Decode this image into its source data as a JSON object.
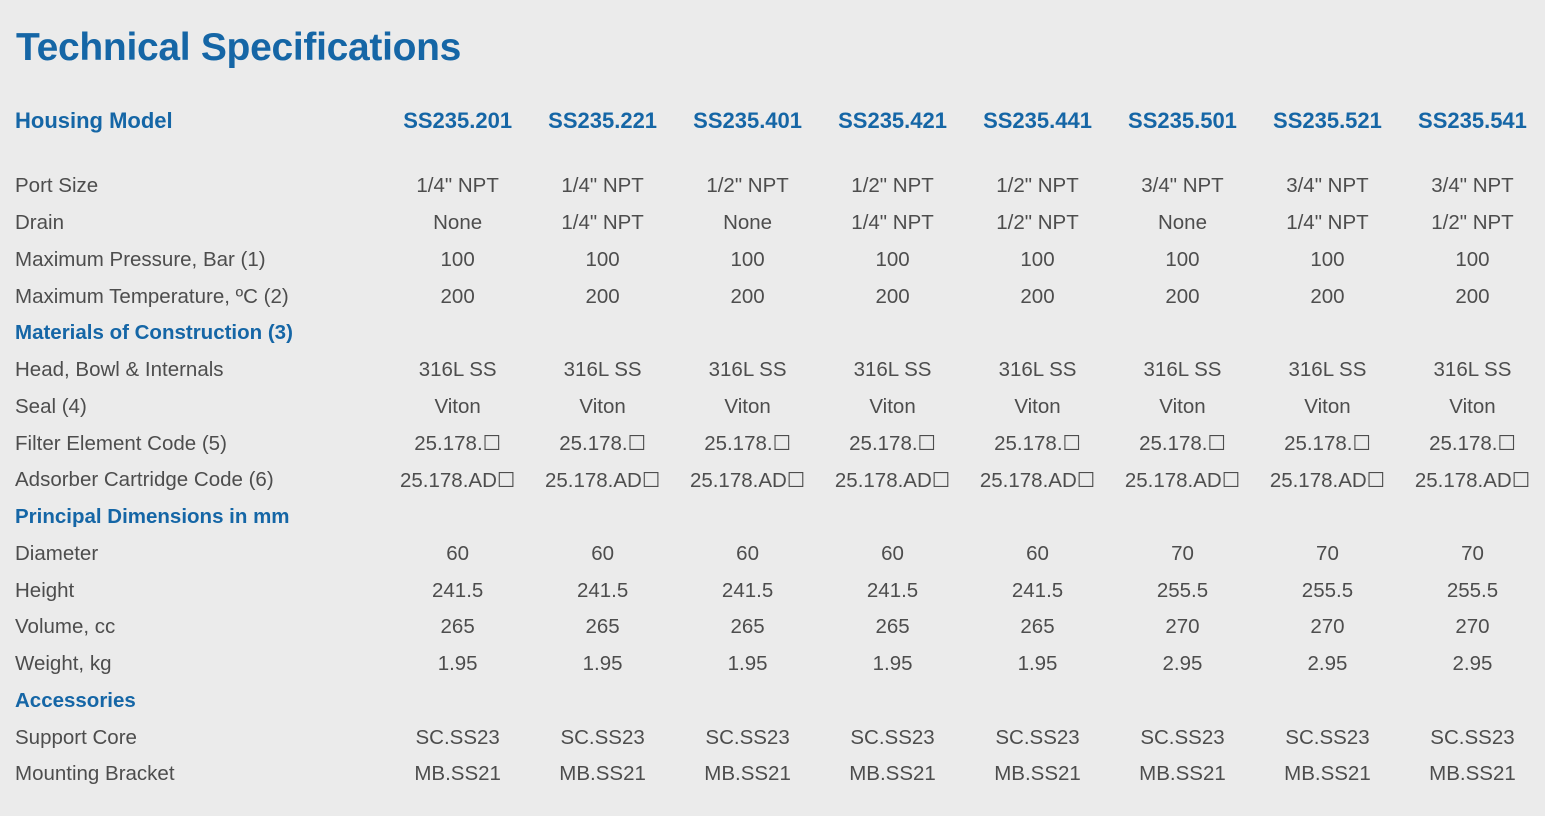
{
  "title": "Technical Specifications",
  "header": {
    "label": "Housing Model",
    "models": [
      "SS235.201",
      "SS235.221",
      "SS235.401",
      "SS235.421",
      "SS235.441",
      "SS235.501",
      "SS235.521",
      "SS235.541"
    ]
  },
  "rows": [
    {
      "type": "data",
      "label": "Port Size",
      "values": [
        "1/4\" NPT",
        "1/4\" NPT",
        "1/2\" NPT",
        "1/2\" NPT",
        "1/2\" NPT",
        "3/4\" NPT",
        "3/4\" NPT",
        "3/4\" NPT"
      ]
    },
    {
      "type": "data",
      "label": "Drain",
      "values": [
        "None",
        "1/4\" NPT",
        "None",
        "1/4\" NPT",
        "1/2\" NPT",
        "None",
        "1/4\" NPT",
        "1/2\" NPT"
      ]
    },
    {
      "type": "data",
      "label": "Maximum Pressure, Bar (1)",
      "values": [
        "100",
        "100",
        "100",
        "100",
        "100",
        "100",
        "100",
        "100"
      ]
    },
    {
      "type": "data",
      "label": "Maximum Temperature, ºC (2)",
      "values": [
        "200",
        "200",
        "200",
        "200",
        "200",
        "200",
        "200",
        "200"
      ]
    },
    {
      "type": "section",
      "label": "Materials of Construction (3)"
    },
    {
      "type": "data",
      "label": "Head, Bowl & Internals",
      "values": [
        "316L SS",
        "316L SS",
        "316L SS",
        "316L SS",
        "316L SS",
        "316L SS",
        "316L SS",
        "316L SS"
      ]
    },
    {
      "type": "data",
      "label": "Seal (4)",
      "values": [
        "Viton",
        "Viton",
        "Viton",
        "Viton",
        "Viton",
        "Viton",
        "Viton",
        "Viton"
      ]
    },
    {
      "type": "data",
      "label": "Filter Element Code (5)",
      "values": [
        "25.178.☐",
        "25.178.☐",
        "25.178.☐",
        "25.178.☐",
        "25.178.☐",
        "25.178.☐",
        "25.178.☐",
        "25.178.☐"
      ]
    },
    {
      "type": "data",
      "label": "Adsorber Cartridge Code (6)",
      "values": [
        "25.178.AD☐",
        "25.178.AD☐",
        "25.178.AD☐",
        "25.178.AD☐",
        "25.178.AD☐",
        "25.178.AD☐",
        "25.178.AD☐",
        "25.178.AD☐"
      ]
    },
    {
      "type": "section",
      "label": "Principal Dimensions in mm"
    },
    {
      "type": "data",
      "label": "Diameter",
      "values": [
        "60",
        "60",
        "60",
        "60",
        "60",
        "70",
        "70",
        "70"
      ]
    },
    {
      "type": "data",
      "label": "Height",
      "values": [
        "241.5",
        "241.5",
        "241.5",
        "241.5",
        "241.5",
        "255.5",
        "255.5",
        "255.5"
      ]
    },
    {
      "type": "data",
      "label": "Volume, cc",
      "values": [
        "265",
        "265",
        "265",
        "265",
        "265",
        "270",
        "270",
        "270"
      ]
    },
    {
      "type": "data",
      "label": "Weight, kg",
      "values": [
        "1.95",
        "1.95",
        "1.95",
        "1.95",
        "1.95",
        "2.95",
        "2.95",
        "2.95"
      ]
    },
    {
      "type": "section",
      "label": "Accessories"
    },
    {
      "type": "data",
      "label": "Support Core",
      "values": [
        "SC.SS23",
        "SC.SS23",
        "SC.SS23",
        "SC.SS23",
        "SC.SS23",
        "SC.SS23",
        "SC.SS23",
        "SC.SS23"
      ]
    },
    {
      "type": "data",
      "label": "Mounting Bracket",
      "values": [
        "MB.SS21",
        "MB.SS21",
        "MB.SS21",
        "MB.SS21",
        "MB.SS21",
        "MB.SS21",
        "MB.SS21",
        "MB.SS21"
      ]
    }
  ],
  "colors": {
    "accent": "#1566a6",
    "text": "#4d4d4d",
    "background": "#ebebeb"
  }
}
